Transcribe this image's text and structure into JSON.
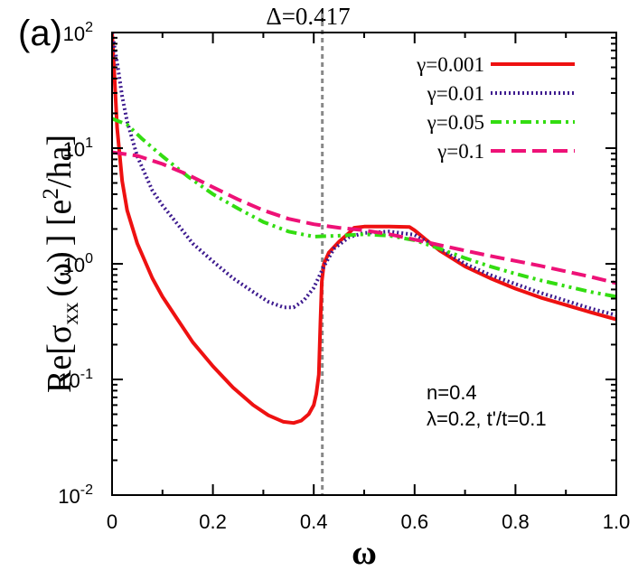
{
  "chart_data": {
    "type": "line",
    "panel_label": "(a)",
    "xlabel": "ω",
    "ylabel_parts": {
      "pre": "Re[",
      "sigma": "σ",
      "sub": "xx",
      "omega": "(ω)",
      "mid": "] [e",
      "sup": "2",
      "post": "/ha]"
    },
    "xlim": [
      0,
      1.0
    ],
    "ylim": [
      0.01,
      100
    ],
    "yscale": "log",
    "x_ticks": [
      "0",
      "0.2",
      "0.4",
      "0.6",
      "0.8",
      "1.0"
    ],
    "y_ticks": [
      {
        "base": "10",
        "exp": "-2",
        "value": 0.01
      },
      {
        "base": "10",
        "exp": "-1",
        "value": 0.1
      },
      {
        "base": "10",
        "exp": "0",
        "value": 1
      },
      {
        "base": "10",
        "exp": "1",
        "value": 10
      },
      {
        "base": "10",
        "exp": "2",
        "value": 100
      }
    ],
    "vline": {
      "x": 0.417,
      "label": "Δ=0.417",
      "color": "#888888"
    },
    "annotations": [
      "n=0.4",
      "λ=0.2, t'/t=0.1"
    ],
    "series": [
      {
        "name": "γ=0.001",
        "color": "#ee1111",
        "dash": "",
        "width": 4,
        "points": [
          [
            0.0,
            100
          ],
          [
            0.005,
            40
          ],
          [
            0.01,
            15
          ],
          [
            0.02,
            5.2
          ],
          [
            0.03,
            2.9
          ],
          [
            0.05,
            1.5
          ],
          [
            0.08,
            0.75
          ],
          [
            0.1,
            0.52
          ],
          [
            0.13,
            0.33
          ],
          [
            0.16,
            0.21
          ],
          [
            0.2,
            0.13
          ],
          [
            0.24,
            0.085
          ],
          [
            0.28,
            0.06
          ],
          [
            0.31,
            0.049
          ],
          [
            0.34,
            0.043
          ],
          [
            0.36,
            0.042
          ],
          [
            0.375,
            0.044
          ],
          [
            0.39,
            0.05
          ],
          [
            0.4,
            0.06
          ],
          [
            0.405,
            0.075
          ],
          [
            0.41,
            0.11
          ],
          [
            0.413,
            0.3
          ],
          [
            0.416,
            0.7
          ],
          [
            0.42,
            1.0
          ],
          [
            0.43,
            1.25
          ],
          [
            0.45,
            1.55
          ],
          [
            0.47,
            1.85
          ],
          [
            0.48,
            2.05
          ],
          [
            0.5,
            2.1
          ],
          [
            0.55,
            2.1
          ],
          [
            0.59,
            2.08
          ],
          [
            0.6,
            1.95
          ],
          [
            0.62,
            1.65
          ],
          [
            0.65,
            1.3
          ],
          [
            0.7,
            0.95
          ],
          [
            0.75,
            0.75
          ],
          [
            0.8,
            0.61
          ],
          [
            0.85,
            0.51
          ],
          [
            0.9,
            0.44
          ],
          [
            0.95,
            0.38
          ],
          [
            1.0,
            0.33
          ]
        ]
      },
      {
        "name": "γ=0.01",
        "color": "#3d1a8e",
        "dash": "2 3",
        "width": 4,
        "points": [
          [
            0.0,
            100
          ],
          [
            0.01,
            55
          ],
          [
            0.02,
            28
          ],
          [
            0.03,
            17
          ],
          [
            0.05,
            8.5
          ],
          [
            0.08,
            4.3
          ],
          [
            0.1,
            3.2
          ],
          [
            0.13,
            2.2
          ],
          [
            0.16,
            1.5
          ],
          [
            0.2,
            1.05
          ],
          [
            0.24,
            0.75
          ],
          [
            0.28,
            0.57
          ],
          [
            0.31,
            0.47
          ],
          [
            0.34,
            0.42
          ],
          [
            0.36,
            0.42
          ],
          [
            0.38,
            0.48
          ],
          [
            0.4,
            0.62
          ],
          [
            0.42,
            0.95
          ],
          [
            0.44,
            1.35
          ],
          [
            0.47,
            1.7
          ],
          [
            0.5,
            1.85
          ],
          [
            0.55,
            1.9
          ],
          [
            0.6,
            1.78
          ],
          [
            0.65,
            1.35
          ],
          [
            0.7,
            1.0
          ],
          [
            0.75,
            0.8
          ],
          [
            0.8,
            0.67
          ],
          [
            0.85,
            0.56
          ],
          [
            0.9,
            0.48
          ],
          [
            0.95,
            0.41
          ],
          [
            1.0,
            0.36
          ]
        ]
      },
      {
        "name": "γ=0.05",
        "color": "#33dd11",
        "dash": "12 5 3 5 3 5",
        "width": 4,
        "points": [
          [
            0.0,
            18
          ],
          [
            0.03,
            16
          ],
          [
            0.06,
            12
          ],
          [
            0.1,
            8.5
          ],
          [
            0.15,
            5.7
          ],
          [
            0.2,
            4.0
          ],
          [
            0.25,
            3.0
          ],
          [
            0.3,
            2.3
          ],
          [
            0.35,
            1.9
          ],
          [
            0.4,
            1.72
          ],
          [
            0.45,
            1.75
          ],
          [
            0.5,
            1.8
          ],
          [
            0.55,
            1.75
          ],
          [
            0.6,
            1.6
          ],
          [
            0.65,
            1.35
          ],
          [
            0.7,
            1.12
          ],
          [
            0.75,
            0.95
          ],
          [
            0.8,
            0.82
          ],
          [
            0.85,
            0.72
          ],
          [
            0.9,
            0.64
          ],
          [
            0.95,
            0.57
          ],
          [
            1.0,
            0.52
          ]
        ]
      },
      {
        "name": "γ=0.1",
        "color": "#ee1177",
        "dash": "16 7",
        "width": 4,
        "points": [
          [
            0.0,
            9.2
          ],
          [
            0.05,
            8.6
          ],
          [
            0.1,
            7.3
          ],
          [
            0.15,
            5.9
          ],
          [
            0.2,
            4.6
          ],
          [
            0.25,
            3.6
          ],
          [
            0.3,
            2.9
          ],
          [
            0.35,
            2.45
          ],
          [
            0.4,
            2.2
          ],
          [
            0.45,
            2.05
          ],
          [
            0.5,
            1.95
          ],
          [
            0.55,
            1.8
          ],
          [
            0.6,
            1.62
          ],
          [
            0.65,
            1.45
          ],
          [
            0.7,
            1.3
          ],
          [
            0.75,
            1.17
          ],
          [
            0.8,
            1.06
          ],
          [
            0.85,
            0.96
          ],
          [
            0.9,
            0.86
          ],
          [
            0.95,
            0.77
          ],
          [
            1.0,
            0.68
          ]
        ]
      }
    ]
  }
}
